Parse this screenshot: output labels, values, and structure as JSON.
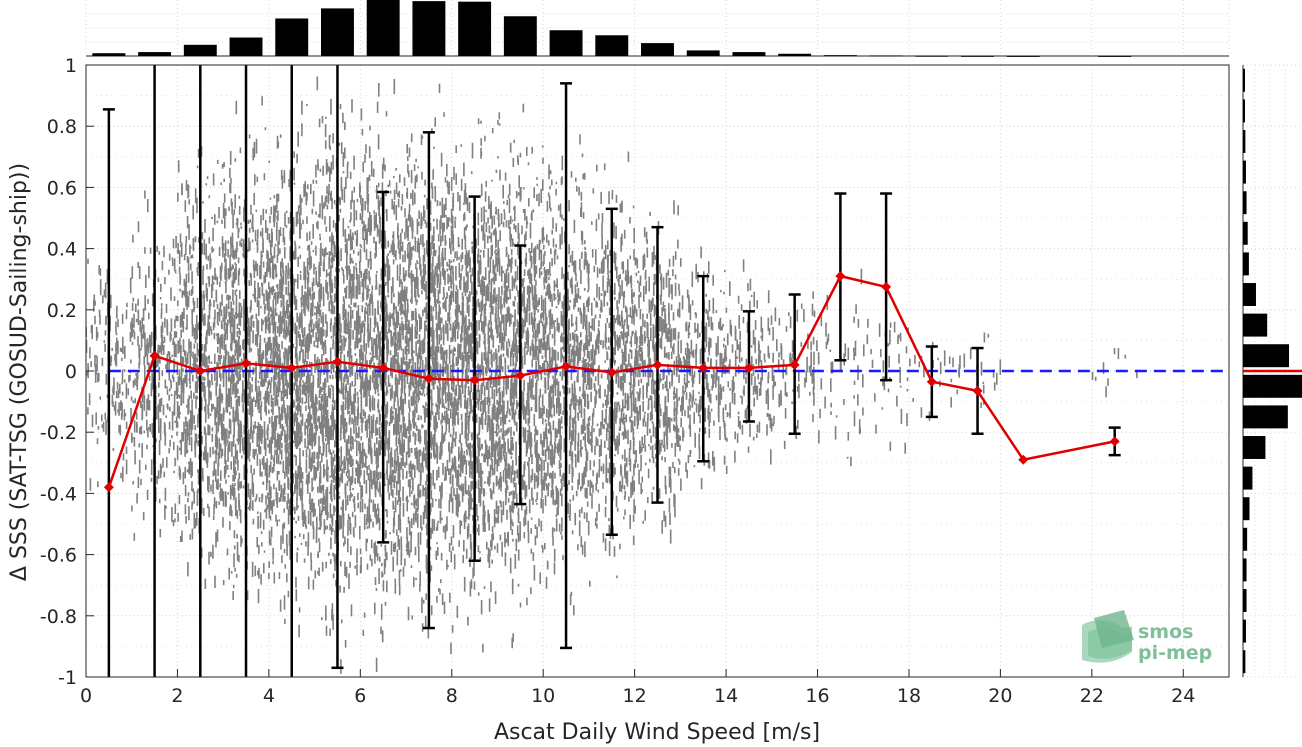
{
  "chart_data": {
    "type": "scatter",
    "xlabel": "Ascat Daily Wind Speed [m/s]",
    "ylabel": "Δ SSS (SAT-TSG (GOSUD-Sailing-ship))",
    "xlim": [
      0,
      25
    ],
    "ylim": [
      -1,
      1
    ],
    "xticks": [
      0,
      2,
      4,
      6,
      8,
      10,
      12,
      14,
      16,
      18,
      20,
      22,
      24
    ],
    "yticks": [
      -1,
      -0.8,
      -0.6,
      -0.4,
      -0.2,
      0,
      0.2,
      0.4,
      0.6,
      0.8,
      1
    ],
    "grid": "dotted",
    "reference_line": {
      "y": 0,
      "color": "#1a1aff",
      "style": "dashed"
    },
    "binned_mean": {
      "color": "#e00000",
      "x": [
        0.5,
        1.5,
        2.5,
        3.5,
        4.5,
        5.5,
        6.5,
        7.5,
        8.5,
        9.5,
        10.5,
        11.5,
        12.5,
        13.5,
        14.5,
        15.5,
        16.5,
        17.5,
        18.5,
        19.5,
        20.5,
        22.5
      ],
      "y": [
        -0.38,
        0.05,
        0.0,
        0.025,
        0.01,
        0.03,
        0.01,
        -0.025,
        -0.03,
        -0.015,
        0.015,
        -0.005,
        0.02,
        0.01,
        0.01,
        0.02,
        0.31,
        0.275,
        -0.035,
        -0.065,
        -0.29,
        -0.23
      ],
      "err_low": [
        -1,
        -1,
        -1,
        -1,
        -1,
        -0.97,
        -0.56,
        -0.84,
        -0.62,
        -0.435,
        -0.905,
        -0.535,
        -0.43,
        -0.295,
        -0.165,
        -0.205,
        0.035,
        -0.03,
        -0.15,
        -0.205,
        -0.29,
        -0.275
      ],
      "err_high": [
        0.855,
        1,
        1,
        1,
        1,
        1,
        0.585,
        0.78,
        0.57,
        0.41,
        0.94,
        0.53,
        0.47,
        0.31,
        0.195,
        0.25,
        0.58,
        0.58,
        0.08,
        0.075,
        -0.29,
        -0.185
      ]
    },
    "scatter_cloud": {
      "color": "#808080",
      "description_bins_x": [
        0.5,
        1.5,
        2.5,
        3.5,
        4.5,
        5.5,
        6.5,
        7.5,
        8.5,
        9.5,
        10.5,
        11.5,
        12.5,
        13.5,
        14.5,
        15.5,
        16.5,
        17.5,
        18.5,
        19.5,
        22.5
      ],
      "spread": [
        0.45,
        0.6,
        0.75,
        0.85,
        0.9,
        0.95,
        0.95,
        0.95,
        0.9,
        0.85,
        0.8,
        0.7,
        0.6,
        0.45,
        0.35,
        0.3,
        0.35,
        0.3,
        0.15,
        0.15,
        0.1
      ],
      "density": [
        0.15,
        0.3,
        0.6,
        0.8,
        1.0,
        1.0,
        1.0,
        1.0,
        0.95,
        0.85,
        0.7,
        0.55,
        0.45,
        0.25,
        0.15,
        0.08,
        0.05,
        0.04,
        0.02,
        0.02,
        0.01
      ]
    },
    "top_histogram": {
      "x": [
        0.5,
        1.5,
        2.5,
        3.5,
        4.5,
        5.5,
        6.5,
        7.5,
        8.5,
        9.5,
        10.5,
        11.5,
        12.5,
        13.5,
        14.5,
        15.5,
        16.5,
        17.5,
        18.5,
        19.5,
        20.5,
        22.5
      ],
      "values": [
        0.05,
        0.07,
        0.2,
        0.33,
        0.67,
        0.85,
        1.0,
        0.98,
        0.97,
        0.71,
        0.46,
        0.37,
        0.23,
        0.1,
        0.07,
        0.04,
        0.015,
        0.01,
        0.005,
        0.003,
        0.002,
        0.002
      ]
    },
    "right_histogram": {
      "y": [
        -0.95,
        -0.85,
        -0.75,
        -0.65,
        -0.55,
        -0.45,
        -0.35,
        -0.25,
        -0.15,
        -0.05,
        0.05,
        0.15,
        0.25,
        0.35,
        0.45,
        0.55,
        0.65,
        0.75,
        0.85,
        0.95
      ],
      "values": [
        0.04,
        0.05,
        0.06,
        0.06,
        0.07,
        0.11,
        0.16,
        0.38,
        0.76,
        1.0,
        0.78,
        0.41,
        0.22,
        0.1,
        0.08,
        0.06,
        0.05,
        0.04,
        0.03,
        0.03
      ],
      "median_line_color": "#e00000"
    }
  },
  "logo": {
    "line1": "smos",
    "line2": "pi-mep"
  }
}
